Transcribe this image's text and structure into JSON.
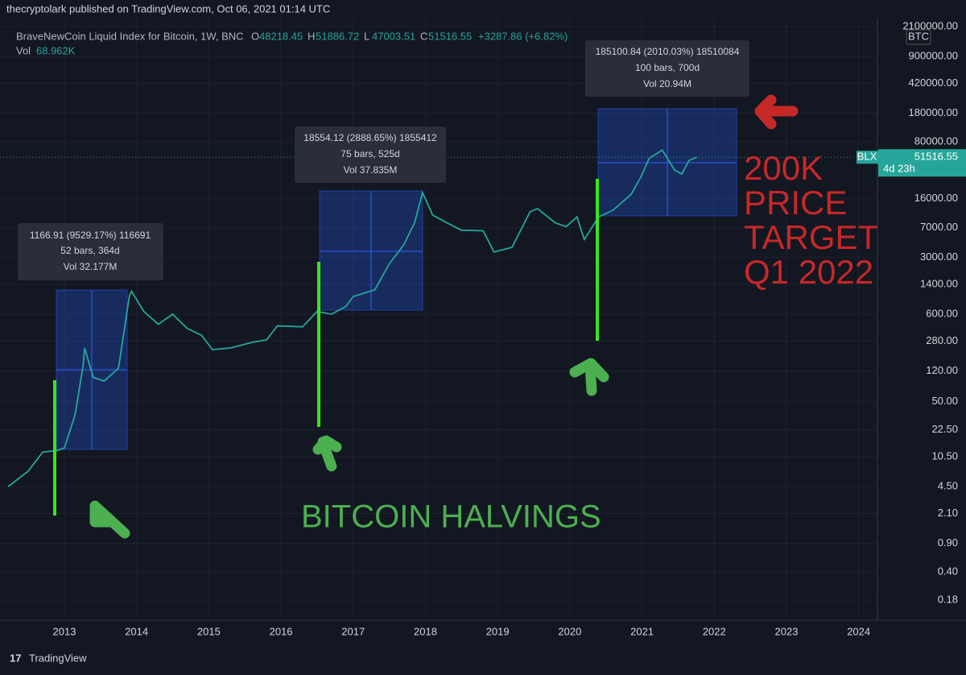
{
  "header": {
    "publisher": "thecryptolark published on TradingView.com, Oct 06, 2021 01:14 UTC",
    "symbol": "BraveNewCoin Liquid Index for Bitcoin, 1W, BNC",
    "ohlc": [
      {
        "key": "O",
        "value": 48218.45
      },
      {
        "key": "H",
        "value": 51886.72
      },
      {
        "key": "L",
        "value": 47003.51
      },
      {
        "key": "C",
        "value": 51516.55
      }
    ],
    "change": "+3287.86 (+6.82%)",
    "volume_label": "Vol",
    "volume": "68.962K"
  },
  "chart_data": {
    "type": "line",
    "log_scale": true,
    "grid": true,
    "currency": "BTC",
    "x": [
      2012.22,
      2012.5,
      2012.7,
      2012.9,
      2013.0,
      2013.15,
      2013.26,
      2013.28,
      2013.4,
      2013.55,
      2013.75,
      2013.9,
      2013.93,
      2014.1,
      2014.3,
      2014.5,
      2014.7,
      2014.9,
      2015.05,
      2015.3,
      2015.6,
      2015.8,
      2015.95,
      2016.3,
      2016.5,
      2016.7,
      2016.9,
      2017.0,
      2017.3,
      2017.5,
      2017.7,
      2017.85,
      2017.96,
      2018.1,
      2018.3,
      2018.5,
      2018.8,
      2018.95,
      2019.2,
      2019.45,
      2019.55,
      2019.8,
      2019.95,
      2020.1,
      2020.2,
      2020.4,
      2020.6,
      2020.85,
      2020.98,
      2021.1,
      2021.28,
      2021.45,
      2021.55,
      2021.65,
      2021.76
    ],
    "series": [
      {
        "name": "BLX",
        "color": "#26a69a",
        "values": [
          4.5,
          7,
          12,
          12.5,
          13.5,
          35,
          140,
          230,
          100,
          90,
          130,
          1000,
          1150,
          650,
          450,
          600,
          400,
          330,
          220,
          230,
          270,
          290,
          430,
          420,
          650,
          600,
          750,
          990,
          1200,
          2500,
          4300,
          8000,
          19000,
          10000,
          8000,
          6500,
          6400,
          3500,
          4000,
          11000,
          12000,
          8000,
          7200,
          9500,
          5000,
          9500,
          11500,
          18000,
          29000,
          50000,
          63000,
          36000,
          32000,
          47000,
          51516.55
        ]
      }
    ],
    "last_price": {
      "value": 51516.55,
      "countdown": "4d 23h"
    },
    "xlim": [
      2012.22,
      2024.26
    ],
    "xticks": [
      2013,
      2014,
      2015,
      2016,
      2017,
      2018,
      2019,
      2020,
      2021,
      2022,
      2023,
      2024
    ],
    "ylim": [
      0.1,
      2700000
    ],
    "yticks": [
      {
        "value": 2100000,
        "label": "2100000.00"
      },
      {
        "value": 900000,
        "label": "900000.00"
      },
      {
        "value": 420000,
        "label": "420000.00"
      },
      {
        "value": 180000,
        "label": "180000.00"
      },
      {
        "value": 80000,
        "label": "80000.00"
      },
      {
        "value": 16000,
        "label": "16000.00"
      },
      {
        "value": 7000,
        "label": "7000.00"
      },
      {
        "value": 3000,
        "label": "3000.00"
      },
      {
        "value": 1400,
        "label": "1400.00"
      },
      {
        "value": 600,
        "label": "600.00"
      },
      {
        "value": 280,
        "label": "280.00"
      },
      {
        "value": 120,
        "label": "120.00"
      },
      {
        "value": 50,
        "label": "50.00"
      },
      {
        "value": 22.5,
        "label": "22.50"
      },
      {
        "value": 10.5,
        "label": "10.50"
      },
      {
        "value": 4.5,
        "label": "4.50"
      },
      {
        "value": 2.1,
        "label": "2.10"
      },
      {
        "value": 0.9,
        "label": "0.90"
      },
      {
        "value": 0.4,
        "label": "0.40"
      },
      {
        "value": 0.18,
        "label": "0.18"
      }
    ],
    "annotations": {
      "measures": [
        {
          "lines": [
            "1166.91 (9529.17%) 116691",
            "52 bars, 364d",
            "Vol 32.177M"
          ]
        },
        {
          "lines": [
            "18554.12 (2888.65%) 1855412",
            "75 bars, 525d",
            "Vol 37.835M"
          ]
        },
        {
          "lines": [
            "185100.84 (2010.03%) 18510084",
            "100 bars, 700d",
            "Vol 20.94M"
          ]
        }
      ],
      "target": [
        "200K",
        "PRICE",
        "TARGET",
        "Q1 2022"
      ],
      "halvings": "BITCOIN HALVINGS"
    }
  },
  "footer": {
    "brand": "TradingView"
  }
}
